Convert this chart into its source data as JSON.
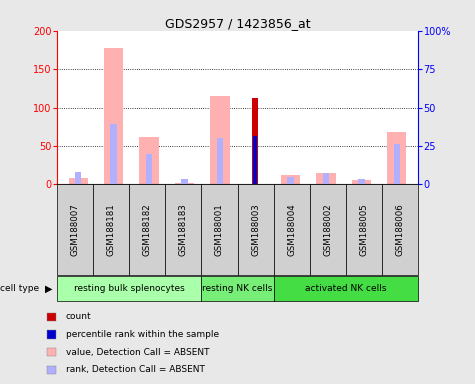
{
  "title": "GDS2957 / 1423856_at",
  "samples": [
    "GSM188007",
    "GSM188181",
    "GSM188182",
    "GSM188183",
    "GSM188001",
    "GSM188003",
    "GSM188004",
    "GSM188002",
    "GSM188005",
    "GSM188006"
  ],
  "value_absent": [
    8,
    178,
    62,
    2,
    115,
    0,
    12,
    15,
    5,
    68
  ],
  "rank_absent": [
    16,
    78,
    40,
    7,
    60,
    0,
    10,
    15,
    7,
    52
  ],
  "count": [
    0,
    0,
    0,
    0,
    0,
    113,
    0,
    0,
    0,
    0
  ],
  "percentile_rank": [
    0,
    0,
    0,
    0,
    0,
    63,
    0,
    0,
    0,
    0
  ],
  "cell_groups": [
    {
      "label": "resting bulk splenocytes",
      "start": 0,
      "end": 4,
      "color": "#aaffaa"
    },
    {
      "label": "resting NK cells",
      "start": 4,
      "end": 6,
      "color": "#77ee77"
    },
    {
      "label": "activated NK cells",
      "start": 6,
      "end": 10,
      "color": "#44dd44"
    }
  ],
  "ylim_left": [
    0,
    200
  ],
  "ylim_right": [
    0,
    100
  ],
  "yticks_left": [
    0,
    50,
    100,
    150,
    200
  ],
  "yticks_right": [
    0,
    25,
    50,
    75,
    100
  ],
  "ytick_labels_right": [
    "0",
    "25",
    "50",
    "75",
    "100%"
  ],
  "color_value_absent": "#ffb0b0",
  "color_rank_absent": "#b0b0ff",
  "color_count": "#cc0000",
  "color_percentile": "#0000cc",
  "legend_items": [
    {
      "label": "count",
      "color": "#cc0000"
    },
    {
      "label": "percentile rank within the sample",
      "color": "#0000cc"
    },
    {
      "label": "value, Detection Call = ABSENT",
      "color": "#ffb0b0"
    },
    {
      "label": "rank, Detection Call = ABSENT",
      "color": "#b0b0ff"
    }
  ],
  "background_color": "#e8e8e8",
  "sample_bg_color": "#d0d0d0",
  "plot_bg": "#ffffff"
}
